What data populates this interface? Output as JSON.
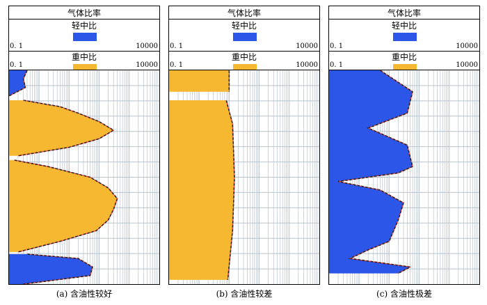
{
  "colors": {
    "light": "#2b56e8",
    "heavy": "#f6b830",
    "outline_dash": "#222222",
    "outline_red": "#e8322a",
    "grid": "#b9c3cc"
  },
  "panels": [
    {
      "id": "a",
      "header": {
        "title": "气体比率",
        "light_label": "轻中比",
        "heavy_label": "重中比",
        "light_min": "0. 1",
        "light_max": "10000",
        "heavy_min": "0. 1",
        "heavy_max": "10000"
      },
      "caption": "(a) 含油性较好",
      "light_zones": [
        {
          "depth": [
            0.0,
            0.04,
            0.08,
            0.12
          ],
          "value": [
            0.4,
            0.3,
            0.35,
            0.1
          ]
        },
        {
          "depth": [
            0.86,
            0.88,
            0.92,
            0.96,
            1.0
          ],
          "value": [
            0.4,
            20,
            60,
            50,
            0.3
          ]
        }
      ],
      "heavy_zones": [
        {
          "depth": [
            0.14,
            0.17,
            0.2,
            0.24,
            0.28,
            0.32,
            0.36,
            0.4
          ],
          "value": [
            0.3,
            5,
            20,
            100,
            300,
            100,
            10,
            0.2
          ]
        },
        {
          "depth": [
            0.42,
            0.45,
            0.5,
            0.55,
            0.6,
            0.65,
            0.7,
            0.75,
            0.8,
            0.85
          ],
          "value": [
            0.15,
            2,
            50,
            200,
            400,
            300,
            200,
            80,
            5,
            0.2
          ]
        }
      ]
    },
    {
      "id": "b",
      "header": {
        "title": "气体比率",
        "light_label": "轻中比",
        "heavy_label": "重中比",
        "light_min": "0. 1",
        "light_max": "10000",
        "heavy_min": "0. 1",
        "heavy_max": "10000"
      },
      "caption": "(b) 含油性较差",
      "light_zones": [],
      "heavy_zones": [
        {
          "depth": [
            0.0,
            0.05,
            0.1
          ],
          "value": [
            10,
            10,
            10
          ]
        },
        {
          "depth": [
            0.14,
            0.25,
            0.5,
            0.75,
            0.98
          ],
          "value": [
            8,
            13,
            15,
            13,
            9
          ]
        }
      ]
    },
    {
      "id": "c",
      "header": {
        "title": "气体比率",
        "light_label": "轻中比",
        "heavy_label": "重中比",
        "light_min": "0. 1",
        "light_max": "10000",
        "heavy_min": "0. 1",
        "heavy_max": "10000"
      },
      "caption": "(c) 含油性极差",
      "light_zones": [
        {
          "depth": [
            0.0,
            0.1,
            0.2,
            0.27,
            0.35,
            0.45,
            0.48,
            0.52,
            0.56,
            0.62,
            0.7,
            0.8,
            0.84,
            0.88,
            0.92,
            0.95
          ],
          "value": [
            5,
            60,
            40,
            2,
            40,
            60,
            20,
            0.2,
            5,
            30,
            20,
            10,
            2,
            0.5,
            50,
            20
          ]
        }
      ],
      "heavy_zones": []
    }
  ]
}
